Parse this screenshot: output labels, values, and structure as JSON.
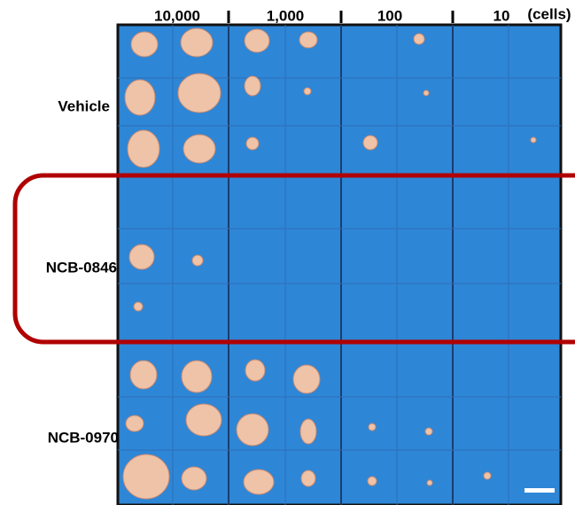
{
  "columns": [
    "10,000",
    "1,000",
    "100",
    "10"
  ],
  "unit": "(cells)",
  "rows": [
    "Vehicle",
    "NCB-0846",
    "NCB-0970"
  ]
}
